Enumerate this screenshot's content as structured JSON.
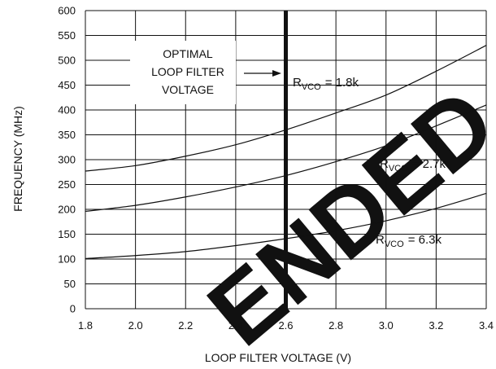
{
  "chart_data": {
    "type": "line",
    "title": "",
    "xlabel": "LOOP FILTER VOLTAGE (V)",
    "ylabel": "FREQUENCY (MHz)",
    "xlim": [
      1.8,
      3.4
    ],
    "ylim": [
      0,
      600
    ],
    "x_ticks": [
      "1.8",
      "2.0",
      "2.2",
      "2.4",
      "2.6",
      "2.8",
      "3.0",
      "3.2",
      "3.4"
    ],
    "y_ticks": [
      "0",
      "50",
      "100",
      "150",
      "200",
      "250",
      "300",
      "350",
      "400",
      "450",
      "500",
      "550",
      "600"
    ],
    "grid": true,
    "series": [
      {
        "name": "RVCO = 1.8k",
        "label_main": "R",
        "label_sub": "VCO",
        "label_value": "= 1.8k",
        "x": [
          1.8,
          2.0,
          2.2,
          2.4,
          2.6,
          2.8,
          3.0,
          3.2,
          3.4
        ],
        "y": [
          277,
          288,
          307,
          330,
          360,
          394,
          430,
          478,
          530
        ]
      },
      {
        "name": "RVCO = 2.7k",
        "label_main": "R",
        "label_sub": "VCO",
        "label_value": "= 2.7k",
        "x": [
          1.8,
          2.0,
          2.2,
          2.4,
          2.6,
          2.8,
          3.0,
          3.2,
          3.4
        ],
        "y": [
          196,
          208,
          225,
          245,
          268,
          296,
          328,
          368,
          410
        ]
      },
      {
        "name": "RVCO = 6.3k",
        "label_main": "R",
        "label_sub": "VCO",
        "label_value": "= 6.3k",
        "x": [
          1.8,
          2.0,
          2.2,
          2.4,
          2.6,
          2.8,
          3.0,
          3.2,
          3.4
        ],
        "y": [
          101,
          107,
          115,
          127,
          141,
          157,
          177,
          202,
          232
        ]
      }
    ],
    "marker_line": {
      "x": 2.6
    },
    "annotation": {
      "lines": [
        "OPTIMAL",
        "LOOP FILTER",
        "VOLTAGE"
      ]
    },
    "colors": {
      "line": "#111111",
      "grid": "#111111",
      "watermark": "#e6e6e6"
    }
  },
  "watermark": {
    "text": "ENDED"
  }
}
